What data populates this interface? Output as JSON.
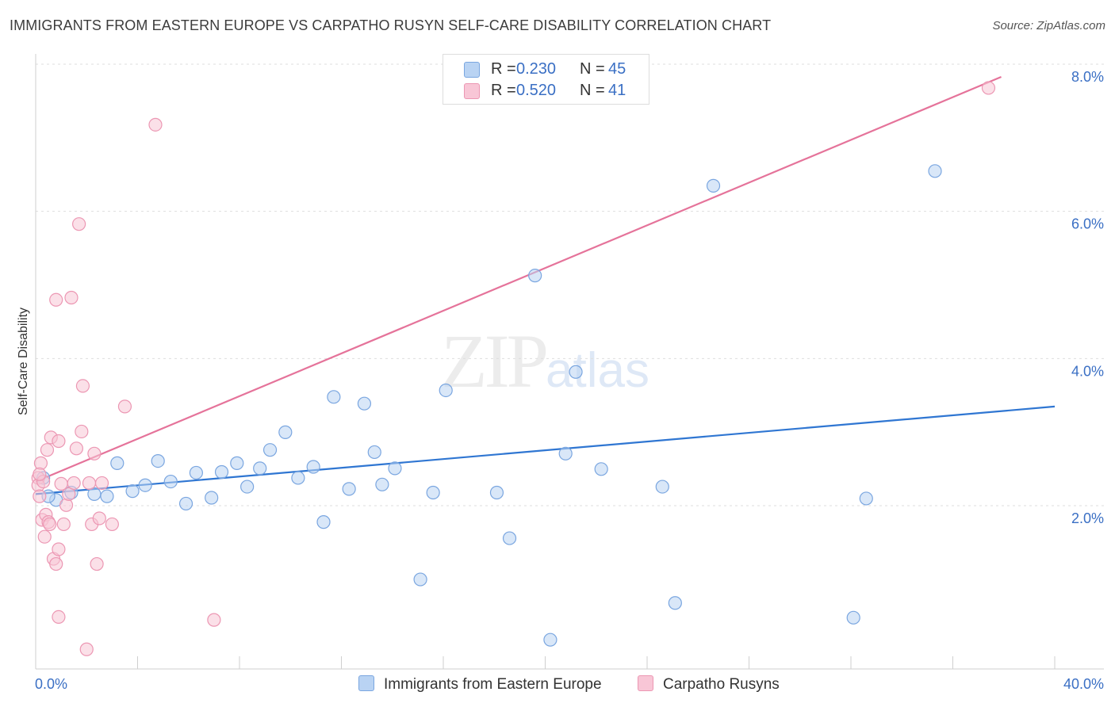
{
  "header": {
    "title": "IMMIGRANTS FROM EASTERN EUROPE VS CARPATHO RUSYN SELF-CARE DISABILITY CORRELATION CHART",
    "source": "Source: ZipAtlas.com"
  },
  "watermark": {
    "zip": "ZIP",
    "atlas": "atlas"
  },
  "legend": {
    "series1": {
      "r_label": "R =",
      "r_value": "0.230",
      "n_label": "N =",
      "n_value": "45"
    },
    "series2": {
      "r_label": "R =",
      "r_value": "0.520",
      "n_label": "N =",
      "n_value": "41"
    }
  },
  "bottom_legend": {
    "series1": "Immigrants from Eastern Europe",
    "series2": "Carpatho Rusyns"
  },
  "colors": {
    "blue_fill": "#b9d3f3",
    "blue_stroke": "#7aa6e0",
    "blue_line": "#2f76d2",
    "pink_fill": "#f8c6d6",
    "pink_stroke": "#ec97b3",
    "pink_line": "#e5739a",
    "tick_label": "#3a6fc4"
  },
  "chart_data": {
    "type": "scatter",
    "title": "IMMIGRANTS FROM EASTERN EUROPE VS CARPATHO RUSYN SELF-CARE DISABILITY CORRELATION CHART",
    "xlabel": "",
    "ylabel": "Self-Care Disability",
    "xlim": [
      0,
      40
    ],
    "ylim": [
      0,
      8.2
    ],
    "x_tick_labels": [
      "0.0%",
      "40.0%"
    ],
    "y_ticks": [
      2,
      4,
      6,
      8
    ],
    "y_tick_labels": [
      "2.0%",
      "4.0%",
      "6.0%",
      "8.0%"
    ],
    "series": [
      {
        "name": "Immigrants from Eastern Europe",
        "color": "#7aa6e0",
        "trend": {
          "x": [
            0,
            40
          ],
          "y": [
            2.33,
            3.52
          ]
        },
        "points": [
          [
            0.3,
            2.55
          ],
          [
            0.8,
            2.25
          ],
          [
            1.4,
            2.35
          ],
          [
            2.3,
            2.33
          ],
          [
            2.8,
            2.3
          ],
          [
            3.2,
            2.75
          ],
          [
            3.8,
            2.37
          ],
          [
            4.3,
            2.45
          ],
          [
            4.8,
            2.78
          ],
          [
            5.3,
            2.5
          ],
          [
            5.9,
            2.2
          ],
          [
            6.3,
            2.62
          ],
          [
            6.9,
            2.28
          ],
          [
            7.3,
            2.63
          ],
          [
            7.9,
            2.75
          ],
          [
            8.3,
            2.43
          ],
          [
            8.8,
            2.68
          ],
          [
            9.2,
            2.93
          ],
          [
            9.8,
            3.17
          ],
          [
            10.3,
            2.55
          ],
          [
            10.9,
            2.7
          ],
          [
            11.3,
            1.95
          ],
          [
            11.7,
            3.65
          ],
          [
            12.3,
            2.4
          ],
          [
            12.9,
            3.56
          ],
          [
            13.3,
            2.9
          ],
          [
            13.6,
            2.46
          ],
          [
            14.1,
            2.68
          ],
          [
            15.1,
            1.17
          ],
          [
            15.6,
            2.35
          ],
          [
            16.1,
            3.74
          ],
          [
            18.1,
            2.35
          ],
          [
            18.6,
            1.73
          ],
          [
            19.6,
            5.3
          ],
          [
            20.2,
            0.35
          ],
          [
            20.8,
            2.88
          ],
          [
            21.2,
            3.99
          ],
          [
            22.2,
            2.67
          ],
          [
            24.6,
            2.43
          ],
          [
            25.1,
            0.85
          ],
          [
            26.6,
            6.52
          ],
          [
            32.1,
            0.65
          ],
          [
            32.6,
            2.27
          ],
          [
            35.3,
            6.72
          ],
          [
            0.5,
            2.3
          ]
        ]
      },
      {
        "name": "Carpatho Rusyns",
        "color": "#ec97b3",
        "trend": {
          "x": [
            0,
            37.9
          ],
          "y": [
            2.5,
            8.0
          ]
        },
        "points": [
          [
            0.1,
            2.55
          ],
          [
            0.1,
            2.45
          ],
          [
            0.15,
            2.3
          ],
          [
            0.2,
            2.75
          ],
          [
            0.25,
            1.98
          ],
          [
            0.3,
            2.5
          ],
          [
            0.35,
            1.75
          ],
          [
            0.4,
            2.05
          ],
          [
            0.45,
            2.93
          ],
          [
            0.5,
            1.95
          ],
          [
            0.55,
            1.92
          ],
          [
            0.6,
            3.1
          ],
          [
            0.7,
            1.45
          ],
          [
            0.8,
            1.38
          ],
          [
            0.8,
            4.97
          ],
          [
            0.9,
            0.66
          ],
          [
            0.9,
            3.05
          ],
          [
            0.9,
            1.58
          ],
          [
            1.0,
            2.47
          ],
          [
            1.1,
            1.92
          ],
          [
            1.2,
            2.18
          ],
          [
            1.3,
            2.33
          ],
          [
            1.4,
            5.0
          ],
          [
            1.5,
            2.48
          ],
          [
            1.6,
            2.95
          ],
          [
            1.7,
            6.0
          ],
          [
            1.8,
            3.18
          ],
          [
            1.85,
            3.8
          ],
          [
            2.0,
            0.22
          ],
          [
            2.1,
            2.48
          ],
          [
            2.2,
            1.92
          ],
          [
            2.3,
            2.88
          ],
          [
            2.4,
            1.38
          ],
          [
            2.5,
            2.0
          ],
          [
            2.6,
            2.48
          ],
          [
            3.0,
            1.92
          ],
          [
            3.5,
            3.52
          ],
          [
            4.7,
            7.35
          ],
          [
            7.0,
            0.62
          ],
          [
            37.4,
            7.85
          ],
          [
            0.15,
            2.6
          ]
        ]
      }
    ]
  }
}
